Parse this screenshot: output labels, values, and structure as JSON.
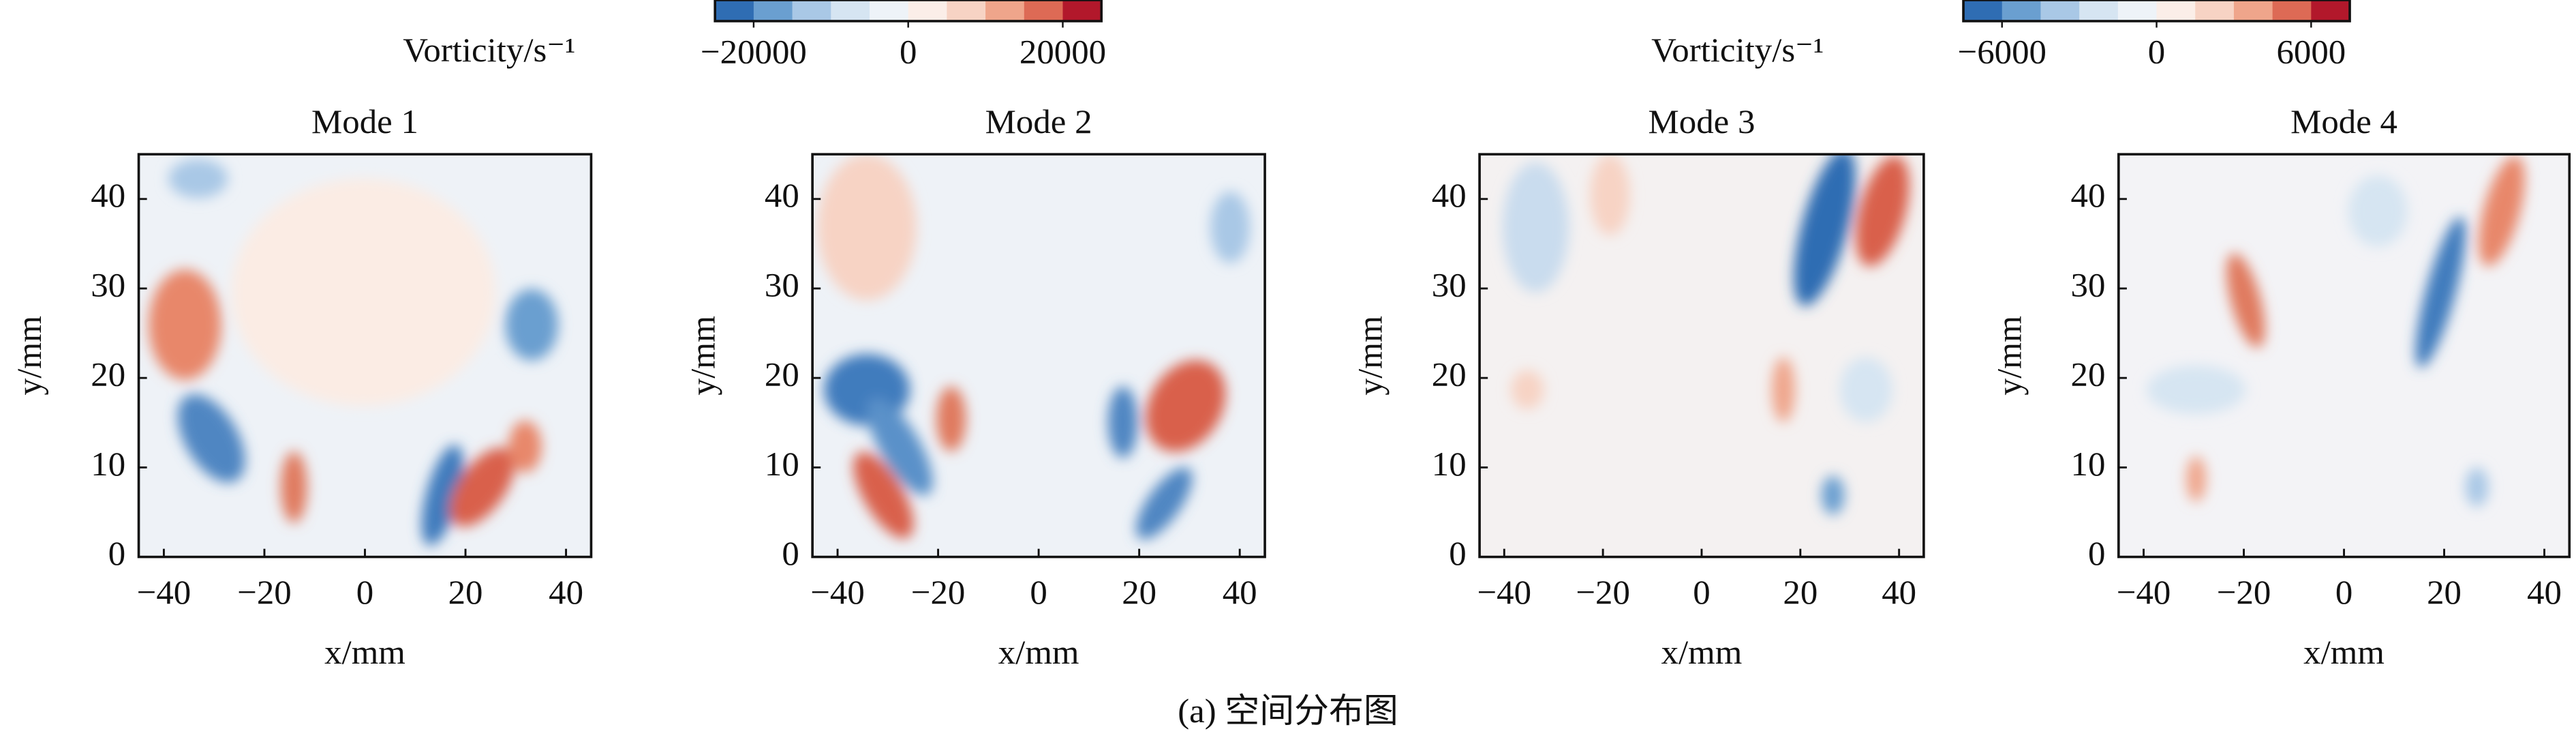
{
  "caption": "(a) 空间分布图",
  "chart_data": [
    {
      "type": "contour",
      "title": "Mode 1",
      "xlabel": "x/mm",
      "ylabel": "y/mm",
      "xlim": [
        -45,
        45
      ],
      "ylim": [
        0,
        45
      ],
      "xticks": [
        {
          "value": -40,
          "label": "−40"
        },
        {
          "value": -20,
          "label": "−20"
        },
        0,
        20,
        40
      ],
      "yticks": [
        0,
        10,
        20,
        30,
        40
      ],
      "colorbar": {
        "label": "Vorticity/s⁻¹",
        "lim": [
          -25000,
          25000
        ],
        "ticks": [
          {
            "value": -20000,
            "label": "−20000"
          },
          0,
          20000
        ],
        "colors": [
          "#2f6db3",
          "#6a9fd0",
          "#a9c8e6",
          "#d6e5f2",
          "#eef3f8",
          "#fbeee8",
          "#f7d3c4",
          "#efa58b",
          "#dd6a55",
          "#b2182b"
        ]
      }
    },
    {
      "type": "contour",
      "title": "Mode 2",
      "xlabel": "x/mm",
      "ylabel": "y/mm",
      "xlim": [
        -45,
        45
      ],
      "ylim": [
        0,
        45
      ],
      "xticks": [
        {
          "value": -40,
          "label": "−40"
        },
        {
          "value": -20,
          "label": "−20"
        },
        0,
        20,
        40
      ],
      "yticks": [
        0,
        10,
        20,
        30,
        40
      ]
    },
    {
      "type": "contour",
      "title": "Mode 3",
      "xlabel": "x/mm",
      "ylabel": "y/mm",
      "xlim": [
        -45,
        45
      ],
      "ylim": [
        0,
        45
      ],
      "xticks": [
        {
          "value": -40,
          "label": "−40"
        },
        {
          "value": -20,
          "label": "−20"
        },
        0,
        20,
        40
      ],
      "yticks": [
        0,
        10,
        20,
        30,
        40
      ],
      "colorbar": {
        "label": "Vorticity/s⁻¹",
        "lim": [
          -7500,
          7500
        ],
        "ticks": [
          {
            "value": -6000,
            "label": "−6000"
          },
          0,
          6000
        ],
        "colors": [
          "#2f6db3",
          "#6a9fd0",
          "#a9c8e6",
          "#d6e5f2",
          "#eef3f8",
          "#fbeee8",
          "#f7d3c4",
          "#efa58b",
          "#dd6a55",
          "#b2182b"
        ]
      }
    },
    {
      "type": "contour",
      "title": "Mode 4",
      "xlabel": "x/mm",
      "ylabel": "y/mm",
      "xlim": [
        -45,
        45
      ],
      "ylim": [
        0,
        45
      ],
      "xticks": [
        {
          "value": -40,
          "label": "−40"
        },
        {
          "value": -20,
          "label": "−20"
        },
        0,
        20,
        40
      ],
      "yticks": [
        0,
        10,
        20,
        30,
        40
      ]
    }
  ]
}
